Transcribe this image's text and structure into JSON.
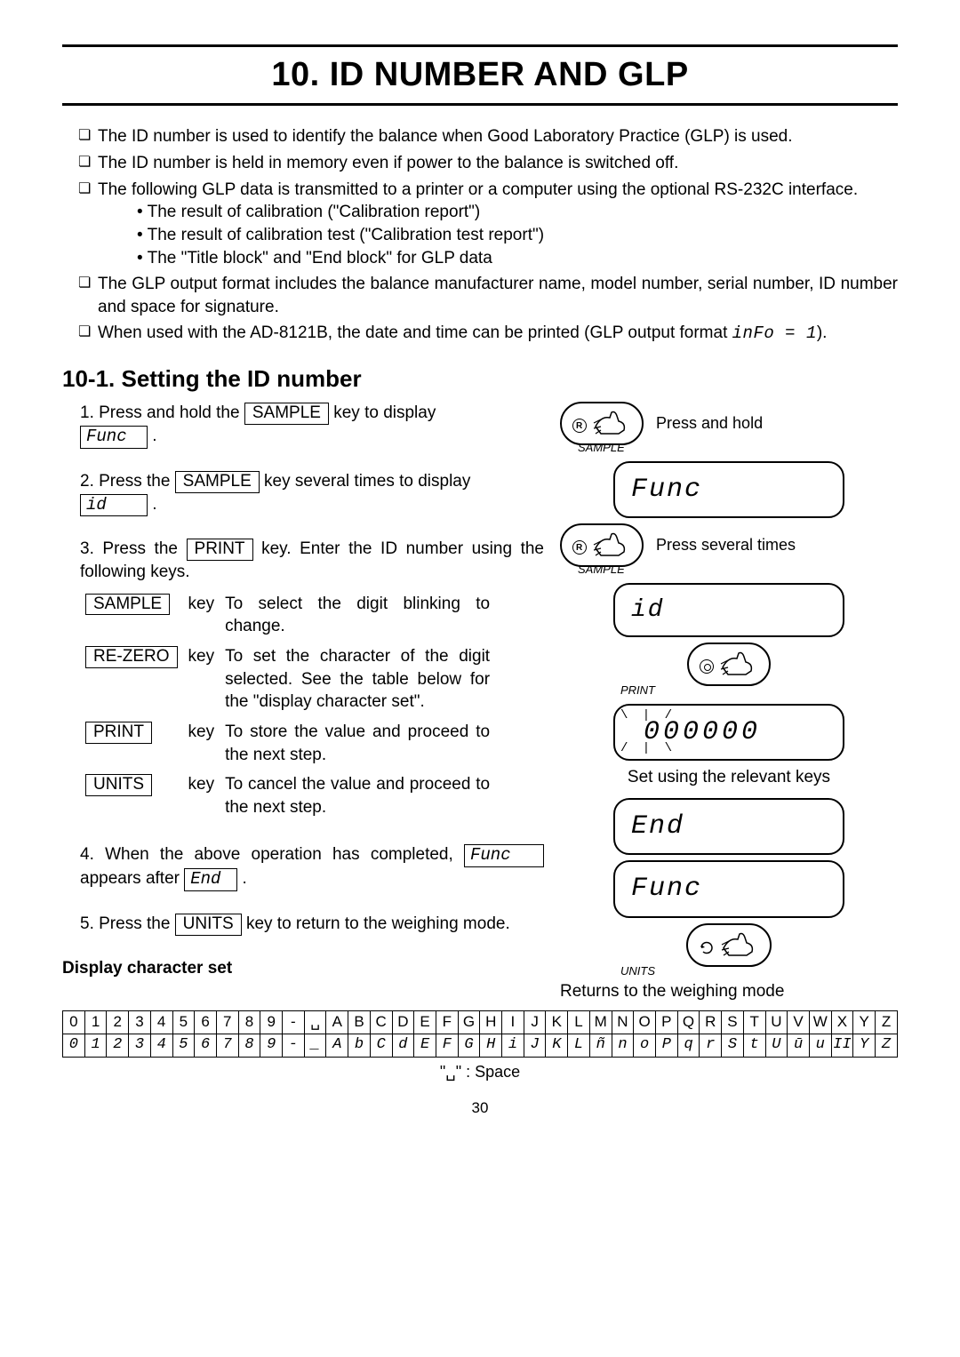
{
  "page": {
    "title": "10. ID NUMBER AND GLP",
    "page_number": "30"
  },
  "intro": {
    "items": [
      "The ID number is used to identify the balance when Good Laboratory Practice (GLP) is used.",
      "The ID number is held in memory even if power to the balance is switched off.",
      "The following GLP data is transmitted to a printer or a computer using the optional RS-232C interface."
    ],
    "sub": [
      "The result of calibration (\"Calibration report\")",
      "The result of calibration test (\"Calibration test report\")",
      "The \"Title block\" and \"End block\" for GLP data"
    ],
    "items2": [
      "The GLP output format includes the balance manufacturer name, model number, serial number, ID number and space for signature."
    ],
    "item3_pre": "When used with the AD-8121B, the date and time can be printed (GLP output format ",
    "item3_seg": "inFo = 1",
    "item3_post": ")."
  },
  "section": {
    "heading": "10-1. Setting the ID number"
  },
  "steps": {
    "s1_pre": "1. Press and hold the ",
    "s1_key": "SAMPLE",
    "s1_mid": " key to display ",
    "s1_disp": "Func",
    "s1_post": ".",
    "s2_pre": "2. Press the ",
    "s2_key": "SAMPLE",
    "s2_mid": " key several times to display ",
    "s2_disp": "id",
    "s2_post": ".",
    "s3_pre": "3. Press the ",
    "s3_key": "PRINT",
    "s3_post": " key. Enter the ID number using the following keys.",
    "key_table": [
      {
        "key": "SAMPLE",
        "label": "key",
        "desc": "To select the digit blinking to change."
      },
      {
        "key": "RE-ZERO",
        "label": "key",
        "desc": "To set the character of the digit selected. See the table below for the \"display character set\"."
      },
      {
        "key": "PRINT",
        "label": "key",
        "desc": "To store the value and proceed to the next step."
      },
      {
        "key": "UNITS",
        "label": "key",
        "desc": "To cancel the value and proceed to the next step."
      }
    ],
    "s4_pre": "4. When the above operation has completed, ",
    "s4_d1": "Func",
    "s4_mid": " appears after ",
    "s4_d2": "End",
    "s4_post": ".",
    "s5_pre": "5. Press the ",
    "s5_key": "UNITS",
    "s5_post": " key to return to the weighing mode."
  },
  "dcs_label": "Display character set",
  "diagram": {
    "press_hold": "Press and hold",
    "sample": "SAMPLE",
    "func": "Func",
    "press_several": "Press several times",
    "id": "id",
    "print": "PRINT",
    "zeros": "000000",
    "set_note": "Set using the relevant keys",
    "end": "End",
    "units": "UNITS",
    "returns": "Returns to the weighing mode"
  },
  "charset": {
    "row1": [
      "0",
      "1",
      "2",
      "3",
      "4",
      "5",
      "6",
      "7",
      "8",
      "9",
      "-",
      "␣",
      "A",
      "B",
      "C",
      "D",
      "E",
      "F",
      "G",
      "H",
      "I",
      "J",
      "K",
      "L",
      "M",
      "N",
      "O",
      "P",
      "Q",
      "R",
      "S",
      "T",
      "U",
      "V",
      "W",
      "X",
      "Y",
      "Z"
    ],
    "row2": [
      "0",
      "1",
      "2",
      "3",
      "4",
      "5",
      "6",
      "7",
      "8",
      "9",
      "-",
      "_",
      "A",
      "b",
      "C",
      "d",
      "E",
      "F",
      "G",
      "H",
      "i",
      "J",
      "K",
      "L",
      "ñ",
      "n",
      "o",
      "P",
      "q",
      "r",
      "S",
      "t",
      "U",
      "ū",
      "u",
      "II",
      "Y",
      "Z"
    ],
    "space_note": "\"␣\" : Space"
  }
}
